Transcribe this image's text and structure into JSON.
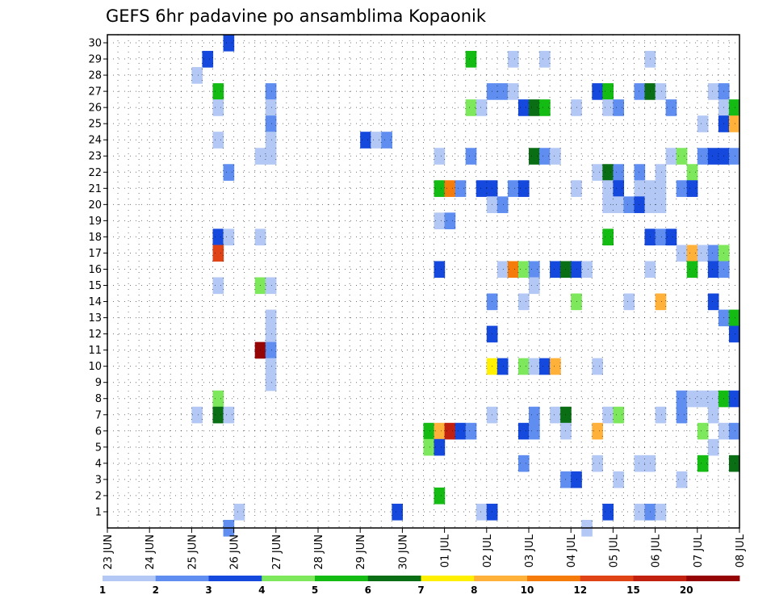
{
  "chart_data": {
    "type": "heatmap",
    "title": "GEFS 6hr padavine po ansamblima Kopaonik",
    "x_labels": [
      "23 JUN",
      "24 JUN",
      "25 JUN",
      "26 JUN",
      "27 JUN",
      "28 JUN",
      "29 JUN",
      "30 JUN",
      "01 JUL",
      "02 JUL",
      "03 JUL",
      "04 JUL",
      "05 JUL",
      "06 JUL",
      "07 JUL",
      "08 JUL"
    ],
    "y_labels": [
      "1",
      "2",
      "3",
      "4",
      "5",
      "6",
      "7",
      "8",
      "9",
      "10",
      "11",
      "12",
      "13",
      "14",
      "15",
      "16",
      "17",
      "18",
      "19",
      "20",
      "21",
      "22",
      "23",
      "24",
      "25",
      "26",
      "27",
      "28",
      "29",
      "30"
    ],
    "x_steps_per_day": 4,
    "x_start_step": 0,
    "x_end_step": 60,
    "grid": true,
    "colorbar": {
      "labels": [
        "1",
        "2",
        "3",
        "4",
        "5",
        "6",
        "7",
        "8",
        "10",
        "12",
        "15",
        "20"
      ],
      "colors": [
        "#b3c8f5",
        "#5f8ef0",
        "#1548dc",
        "#7ee85c",
        "#13bb13",
        "#0a6e14",
        "#ffef00",
        "#ffb13a",
        "#f57b0a",
        "#e04416",
        "#c32110",
        "#950505"
      ]
    },
    "cells": [
      [
        11,
        30,
        2
      ],
      [
        9,
        29,
        2
      ],
      [
        34,
        29,
        4
      ],
      [
        38,
        29,
        0
      ],
      [
        41,
        29,
        0
      ],
      [
        51,
        29,
        0
      ],
      [
        8,
        28,
        0
      ],
      [
        10,
        27,
        4
      ],
      [
        15,
        27,
        1
      ],
      [
        36,
        27,
        1
      ],
      [
        37,
        27,
        1
      ],
      [
        38,
        27,
        0
      ],
      [
        46,
        27,
        2
      ],
      [
        47,
        27,
        4
      ],
      [
        50,
        27,
        1
      ],
      [
        51,
        27,
        5
      ],
      [
        52,
        27,
        0
      ],
      [
        57,
        27,
        0
      ],
      [
        58,
        27,
        1
      ],
      [
        10,
        26,
        0
      ],
      [
        15,
        26,
        0
      ],
      [
        34,
        26,
        3
      ],
      [
        35,
        26,
        0
      ],
      [
        39,
        26,
        2
      ],
      [
        40,
        26,
        5
      ],
      [
        41,
        26,
        4
      ],
      [
        44,
        26,
        0
      ],
      [
        47,
        26,
        0
      ],
      [
        48,
        26,
        1
      ],
      [
        53,
        26,
        1
      ],
      [
        58,
        26,
        0
      ],
      [
        59,
        26,
        4
      ],
      [
        15,
        25,
        1
      ],
      [
        56,
        25,
        0
      ],
      [
        58,
        25,
        2
      ],
      [
        59,
        25,
        7
      ],
      [
        10,
        24,
        0
      ],
      [
        15,
        24,
        0
      ],
      [
        24,
        24,
        2
      ],
      [
        25,
        24,
        0
      ],
      [
        26,
        24,
        1
      ],
      [
        14,
        23,
        0
      ],
      [
        15,
        23,
        0
      ],
      [
        31,
        23,
        0
      ],
      [
        34,
        23,
        1
      ],
      [
        40,
        23,
        5
      ],
      [
        41,
        23,
        1
      ],
      [
        42,
        23,
        0
      ],
      [
        53,
        23,
        0
      ],
      [
        54,
        23,
        3
      ],
      [
        56,
        23,
        1
      ],
      [
        57,
        23,
        2
      ],
      [
        58,
        23,
        2
      ],
      [
        59,
        23,
        1
      ],
      [
        11,
        22,
        1
      ],
      [
        46,
        22,
        0
      ],
      [
        47,
        22,
        5
      ],
      [
        48,
        22,
        1
      ],
      [
        50,
        22,
        1
      ],
      [
        52,
        22,
        0
      ],
      [
        55,
        22,
        3
      ],
      [
        31,
        21,
        4
      ],
      [
        32,
        21,
        8
      ],
      [
        33,
        21,
        1
      ],
      [
        35,
        21,
        2
      ],
      [
        36,
        21,
        2
      ],
      [
        38,
        21,
        1
      ],
      [
        39,
        21,
        2
      ],
      [
        44,
        21,
        0
      ],
      [
        47,
        21,
        0
      ],
      [
        48,
        21,
        2
      ],
      [
        50,
        21,
        0
      ],
      [
        51,
        21,
        0
      ],
      [
        52,
        21,
        0
      ],
      [
        54,
        21,
        1
      ],
      [
        55,
        21,
        2
      ],
      [
        36,
        20,
        0
      ],
      [
        37,
        20,
        1
      ],
      [
        47,
        20,
        0
      ],
      [
        48,
        20,
        0
      ],
      [
        49,
        20,
        1
      ],
      [
        50,
        20,
        2
      ],
      [
        51,
        20,
        0
      ],
      [
        52,
        20,
        0
      ],
      [
        31,
        19,
        0
      ],
      [
        32,
        19,
        1
      ],
      [
        10,
        18,
        2
      ],
      [
        11,
        18,
        0
      ],
      [
        14,
        18,
        0
      ],
      [
        47,
        18,
        4
      ],
      [
        51,
        18,
        2
      ],
      [
        52,
        18,
        1
      ],
      [
        53,
        18,
        2
      ],
      [
        10,
        17,
        9
      ],
      [
        54,
        17,
        0
      ],
      [
        55,
        17,
        7
      ],
      [
        56,
        17,
        0
      ],
      [
        57,
        17,
        1
      ],
      [
        58,
        17,
        3
      ],
      [
        31,
        16,
        2
      ],
      [
        37,
        16,
        0
      ],
      [
        38,
        16,
        8
      ],
      [
        39,
        16,
        3
      ],
      [
        40,
        16,
        1
      ],
      [
        42,
        16,
        2
      ],
      [
        43,
        16,
        5
      ],
      [
        44,
        16,
        2
      ],
      [
        45,
        16,
        0
      ],
      [
        51,
        16,
        0
      ],
      [
        55,
        16,
        4
      ],
      [
        57,
        16,
        2
      ],
      [
        58,
        16,
        1
      ],
      [
        10,
        15,
        0
      ],
      [
        14,
        15,
        3
      ],
      [
        15,
        15,
        0
      ],
      [
        40,
        15,
        0
      ],
      [
        36,
        14,
        1
      ],
      [
        39,
        14,
        0
      ],
      [
        44,
        14,
        3
      ],
      [
        49,
        14,
        0
      ],
      [
        52,
        14,
        7
      ],
      [
        57,
        14,
        2
      ],
      [
        15,
        13,
        0
      ],
      [
        58,
        13,
        1
      ],
      [
        59,
        13,
        4
      ],
      [
        15,
        12,
        0
      ],
      [
        36,
        12,
        2
      ],
      [
        59,
        12,
        2
      ],
      [
        14,
        11,
        11
      ],
      [
        15,
        11,
        1
      ],
      [
        15,
        10,
        0
      ],
      [
        36,
        10,
        6
      ],
      [
        37,
        10,
        2
      ],
      [
        39,
        10,
        3
      ],
      [
        40,
        10,
        0
      ],
      [
        41,
        10,
        2
      ],
      [
        42,
        10,
        7
      ],
      [
        46,
        10,
        0
      ],
      [
        15,
        9,
        0
      ],
      [
        10,
        8,
        3
      ],
      [
        54,
        8,
        1
      ],
      [
        55,
        8,
        0
      ],
      [
        56,
        8,
        0
      ],
      [
        57,
        8,
        0
      ],
      [
        58,
        8,
        4
      ],
      [
        59,
        8,
        2
      ],
      [
        8,
        7,
        0
      ],
      [
        10,
        7,
        5
      ],
      [
        11,
        7,
        0
      ],
      [
        36,
        7,
        0
      ],
      [
        40,
        7,
        1
      ],
      [
        42,
        7,
        0
      ],
      [
        43,
        7,
        5
      ],
      [
        47,
        7,
        0
      ],
      [
        48,
        7,
        3
      ],
      [
        52,
        7,
        0
      ],
      [
        54,
        7,
        1
      ],
      [
        57,
        7,
        0
      ],
      [
        30,
        6,
        4
      ],
      [
        31,
        6,
        7
      ],
      [
        32,
        6,
        10
      ],
      [
        33,
        6,
        2
      ],
      [
        34,
        6,
        1
      ],
      [
        39,
        6,
        2
      ],
      [
        40,
        6,
        1
      ],
      [
        43,
        6,
        0
      ],
      [
        46,
        6,
        7
      ],
      [
        56,
        6,
        3
      ],
      [
        58,
        6,
        0
      ],
      [
        59,
        6,
        1
      ],
      [
        30,
        5,
        3
      ],
      [
        31,
        5,
        2
      ],
      [
        57,
        5,
        0
      ],
      [
        39,
        4,
        1
      ],
      [
        46,
        4,
        0
      ],
      [
        50,
        4,
        0
      ],
      [
        51,
        4,
        0
      ],
      [
        56,
        4,
        4
      ],
      [
        59,
        4,
        5
      ],
      [
        43,
        3,
        1
      ],
      [
        44,
        3,
        2
      ],
      [
        48,
        3,
        0
      ],
      [
        54,
        3,
        0
      ],
      [
        31,
        2,
        4
      ],
      [
        12,
        1,
        0
      ],
      [
        27,
        1,
        2
      ],
      [
        35,
        1,
        0
      ],
      [
        36,
        1,
        2
      ],
      [
        47,
        1,
        2
      ],
      [
        50,
        1,
        0
      ],
      [
        51,
        1,
        1
      ],
      [
        52,
        1,
        0
      ],
      [
        11,
        0,
        1
      ],
      [
        45,
        0,
        0
      ]
    ]
  }
}
